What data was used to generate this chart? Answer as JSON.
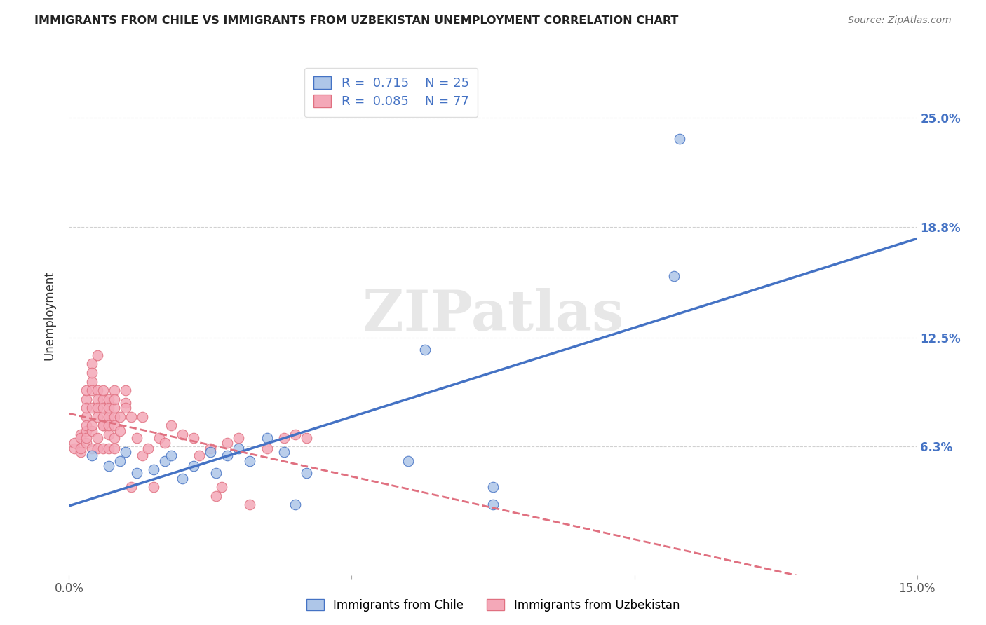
{
  "title": "IMMIGRANTS FROM CHILE VS IMMIGRANTS FROM UZBEKISTAN UNEMPLOYMENT CORRELATION CHART",
  "source": "Source: ZipAtlas.com",
  "ylabel": "Unemployment",
  "x_min": 0.0,
  "x_max": 0.15,
  "y_min": -0.01,
  "y_max": 0.285,
  "y_tick_labels_right": [
    "25.0%",
    "18.8%",
    "12.5%",
    "6.3%"
  ],
  "y_tick_vals_right": [
    0.25,
    0.188,
    0.125,
    0.063
  ],
  "legend_chile_R": "0.715",
  "legend_chile_N": "25",
  "legend_uzbekistan_R": "0.085",
  "legend_uzbekistan_N": "77",
  "chile_color": "#aec6e8",
  "uzbekistan_color": "#f4a8b8",
  "chile_line_color": "#4472c4",
  "uzbekistan_line_color": "#e07080",
  "background_color": "#ffffff",
  "grid_color": "#cccccc",
  "watermark": "ZIPatlas",
  "chile_points": [
    [
      0.004,
      0.058
    ],
    [
      0.007,
      0.052
    ],
    [
      0.009,
      0.055
    ],
    [
      0.01,
      0.06
    ],
    [
      0.012,
      0.048
    ],
    [
      0.015,
      0.05
    ],
    [
      0.017,
      0.055
    ],
    [
      0.018,
      0.058
    ],
    [
      0.02,
      0.045
    ],
    [
      0.022,
      0.052
    ],
    [
      0.025,
      0.06
    ],
    [
      0.026,
      0.048
    ],
    [
      0.028,
      0.058
    ],
    [
      0.03,
      0.062
    ],
    [
      0.032,
      0.055
    ],
    [
      0.035,
      0.068
    ],
    [
      0.038,
      0.06
    ],
    [
      0.04,
      0.03
    ],
    [
      0.042,
      0.048
    ],
    [
      0.06,
      0.055
    ],
    [
      0.063,
      0.118
    ],
    [
      0.075,
      0.04
    ],
    [
      0.075,
      0.03
    ],
    [
      0.107,
      0.16
    ],
    [
      0.108,
      0.238
    ]
  ],
  "uzbekistan_points": [
    [
      0.001,
      0.062
    ],
    [
      0.001,
      0.065
    ],
    [
      0.002,
      0.06
    ],
    [
      0.002,
      0.07
    ],
    [
      0.002,
      0.068
    ],
    [
      0.002,
      0.062
    ],
    [
      0.003,
      0.065
    ],
    [
      0.003,
      0.072
    ],
    [
      0.003,
      0.08
    ],
    [
      0.003,
      0.075
    ],
    [
      0.003,
      0.09
    ],
    [
      0.003,
      0.085
    ],
    [
      0.003,
      0.095
    ],
    [
      0.003,
      0.068
    ],
    [
      0.004,
      0.1
    ],
    [
      0.004,
      0.085
    ],
    [
      0.004,
      0.072
    ],
    [
      0.004,
      0.062
    ],
    [
      0.004,
      0.095
    ],
    [
      0.004,
      0.11
    ],
    [
      0.004,
      0.105
    ],
    [
      0.004,
      0.075
    ],
    [
      0.005,
      0.068
    ],
    [
      0.005,
      0.095
    ],
    [
      0.005,
      0.09
    ],
    [
      0.005,
      0.115
    ],
    [
      0.005,
      0.062
    ],
    [
      0.005,
      0.085
    ],
    [
      0.005,
      0.08
    ],
    [
      0.006,
      0.075
    ],
    [
      0.006,
      0.09
    ],
    [
      0.006,
      0.08
    ],
    [
      0.006,
      0.062
    ],
    [
      0.006,
      0.085
    ],
    [
      0.006,
      0.095
    ],
    [
      0.006,
      0.075
    ],
    [
      0.007,
      0.08
    ],
    [
      0.007,
      0.07
    ],
    [
      0.007,
      0.09
    ],
    [
      0.007,
      0.062
    ],
    [
      0.007,
      0.085
    ],
    [
      0.007,
      0.075
    ],
    [
      0.008,
      0.068
    ],
    [
      0.008,
      0.062
    ],
    [
      0.008,
      0.08
    ],
    [
      0.008,
      0.085
    ],
    [
      0.008,
      0.075
    ],
    [
      0.008,
      0.095
    ],
    [
      0.008,
      0.09
    ],
    [
      0.009,
      0.08
    ],
    [
      0.009,
      0.072
    ],
    [
      0.01,
      0.095
    ],
    [
      0.01,
      0.088
    ],
    [
      0.01,
      0.085
    ],
    [
      0.011,
      0.08
    ],
    [
      0.011,
      0.04
    ],
    [
      0.012,
      0.068
    ],
    [
      0.013,
      0.058
    ],
    [
      0.013,
      0.08
    ],
    [
      0.014,
      0.062
    ],
    [
      0.015,
      0.04
    ],
    [
      0.016,
      0.068
    ],
    [
      0.017,
      0.065
    ],
    [
      0.018,
      0.075
    ],
    [
      0.02,
      0.07
    ],
    [
      0.022,
      0.068
    ],
    [
      0.023,
      0.058
    ],
    [
      0.025,
      0.062
    ],
    [
      0.026,
      0.035
    ],
    [
      0.027,
      0.04
    ],
    [
      0.028,
      0.065
    ],
    [
      0.03,
      0.068
    ],
    [
      0.032,
      0.03
    ],
    [
      0.035,
      0.062
    ],
    [
      0.038,
      0.068
    ],
    [
      0.04,
      0.07
    ],
    [
      0.042,
      0.068
    ]
  ]
}
